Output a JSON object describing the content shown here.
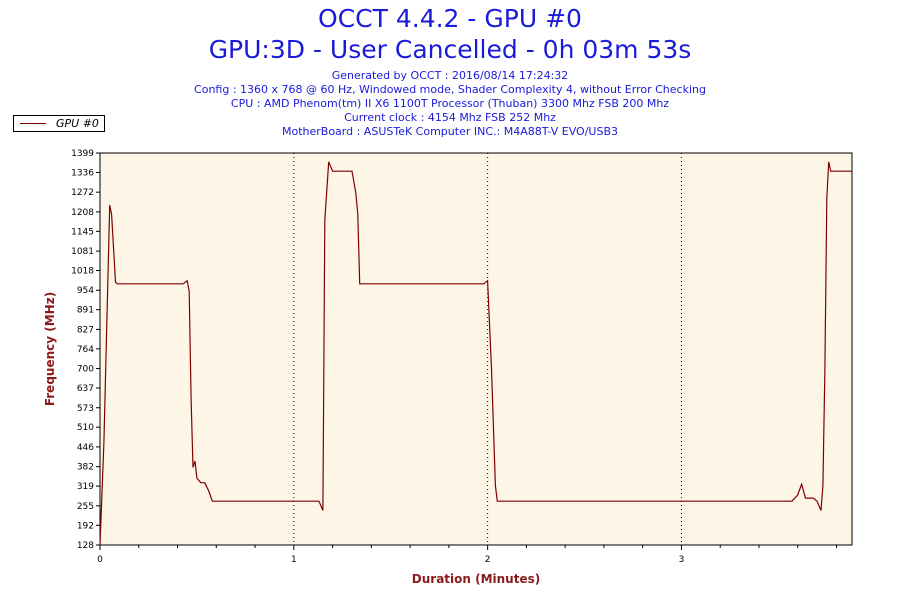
{
  "header": {
    "title": "OCCT 4.4.2 - GPU #0",
    "subtitle": "GPU:3D - User Cancelled - 0h 03m 53s",
    "lines": [
      "Generated by OCCT : 2016/08/14 17:24:32",
      "Config : 1360 x 768 @ 60 Hz, Windowed mode, Shader Complexity 4, without Error Checking",
      "CPU : AMD Phenom(tm) II X6 1100T Processor (Thuban) 3300 Mhz FSB 200 Mhz",
      "Current clock : 4154 Mhz FSB 252 Mhz",
      "MotherBoard : ASUSTeK Computer INC.: M4A88T-V EVO/USB3"
    ]
  },
  "colors": {
    "title": "#1a1adb",
    "series": "#800000",
    "plot_bg": "#fdf5e6",
    "axis_title": "#8b1a1a"
  },
  "chart_data": {
    "type": "line",
    "xlabel": "Duration (Minutes)",
    "ylabel": "Frequency (MHz)",
    "xlim": [
      0,
      3.88
    ],
    "ylim": [
      128,
      1399
    ],
    "x_ticks": [
      "0",
      "1",
      "2",
      "3"
    ],
    "x_tick_values": [
      0,
      1,
      2,
      3
    ],
    "y_ticks": [
      128,
      192,
      255,
      319,
      382,
      446,
      510,
      573,
      637,
      700,
      764,
      827,
      891,
      954,
      1018,
      1081,
      1145,
      1208,
      1272,
      1336,
      1399
    ],
    "grid": "vertical dotted at major x ticks",
    "legend": "top-left",
    "series": [
      {
        "name": "GPU #0",
        "x": [
          0,
          0.02,
          0.05,
          0.06,
          0.08,
          0.09,
          0.43,
          0.45,
          0.46,
          0.47,
          0.48,
          0.49,
          0.5,
          0.52,
          0.54,
          0.56,
          0.58,
          1.0,
          1.13,
          1.15,
          1.16,
          1.18,
          1.2,
          1.22,
          1.3,
          1.32,
          1.33,
          1.34,
          1.36,
          1.98,
          2.0,
          2.02,
          2.04,
          2.05,
          2.06,
          2.5,
          3.0,
          3.57,
          3.6,
          3.62,
          3.64,
          3.68,
          3.7,
          3.72,
          3.73,
          3.74,
          3.75,
          3.76,
          3.77,
          3.78,
          3.88
        ],
        "y": [
          128,
          460,
          1230,
          1200,
          980,
          975,
          975,
          985,
          950,
          600,
          380,
          400,
          345,
          330,
          330,
          305,
          270,
          270,
          270,
          240,
          1180,
          1370,
          1340,
          1340,
          1340,
          1270,
          1200,
          975,
          975,
          975,
          985,
          700,
          320,
          270,
          270,
          270,
          270,
          270,
          290,
          325,
          280,
          280,
          270,
          240,
          320,
          700,
          1250,
          1370,
          1340,
          1340,
          1340
        ]
      }
    ]
  }
}
